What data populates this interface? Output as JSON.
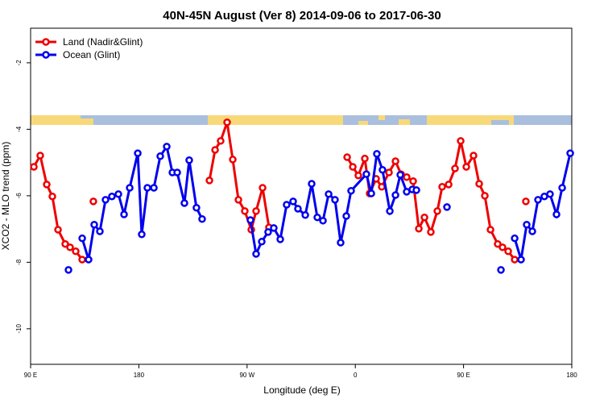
{
  "chart_data": {
    "type": "line",
    "title": "40N-45N August (Ver 8)   2014-09-06 to 2017-06-30",
    "x_label": "Longitude (deg E)",
    "y_label": "XCO2 - MLO trend (ppm)",
    "xlim": [
      90,
      540
    ],
    "ylim": [
      -11.07,
      -0.96
    ],
    "xticks": [
      {
        "value": 90,
        "label": "90 E"
      },
      180,
      {
        "value": 270,
        "label": "90 W"
      },
      {
        "value": 360,
        "label": "0"
      },
      {
        "value": 450,
        "label": "90 E"
      },
      {
        "value": 540,
        "label": "180"
      }
    ],
    "yticks": [
      -2,
      -4,
      -6,
      -8,
      -10
    ],
    "legend": "top-left",
    "series": [
      {
        "name": "Land (Nadir&Glint)",
        "color": "#ee0000",
        "x": [
          92.7,
          98.0,
          103.4,
          108.1,
          112.8,
          118.8,
          122.8,
          127.5,
          132.9,
          null,
          142.2,
          null,
          238.7,
          243.4,
          248.0,
          253.4,
          258.1,
          262.8,
          268.1,
          273.5,
          277.5,
          282.9,
          288.2,
          null,
          353.2,
          357.9,
          362.5,
          367.9,
          371.9,
          377.3,
          382.0,
          388.0,
          393.4,
          398.0,
          402.7,
          408.1,
          412.8,
          417.5,
          422.8,
          428.2,
          432.2,
          437.6,
          442.9,
          447.6,
          452.3,
          458.3,
          463.0,
          467.7,
          472.4,
          478.4,
          482.4,
          487.1,
          492.5,
          null,
          501.8
        ],
        "values": [
          -5.13,
          -4.79,
          -5.66,
          -6.02,
          -7.02,
          -7.45,
          -7.55,
          -7.67,
          -7.92,
          null,
          -6.17,
          null,
          -5.54,
          -4.62,
          -4.35,
          -3.79,
          -4.91,
          -6.12,
          -6.46,
          -7.02,
          -6.46,
          -5.76,
          -6.95,
          null,
          -4.84,
          -5.13,
          -5.39,
          -4.88,
          -5.93,
          -5.49,
          -5.73,
          -5.3,
          -4.96,
          -5.35,
          -5.44,
          -5.56,
          -6.99,
          -6.65,
          -7.09,
          -6.46,
          -5.73,
          -5.66,
          -5.18,
          -4.35,
          -5.13,
          -4.79,
          -5.64,
          -6.0,
          -7.02,
          -7.45,
          -7.55,
          -7.67,
          -7.92,
          null,
          -6.17
        ]
      },
      {
        "name": "Ocean (Glint)",
        "color": "#0000ee",
        "x": [
          121.5,
          null,
          132.9,
          138.2,
          142.9,
          147.6,
          152.3,
          157.6,
          163.0,
          167.7,
          172.4,
          179.1,
          182.4,
          187.1,
          192.5,
          197.8,
          203.2,
          207.9,
          211.9,
          217.9,
          221.9,
          227.9,
          232.6,
          null,
          272.8,
          277.5,
          282.2,
          287.5,
          292.2,
          297.6,
          302.9,
          308.3,
          312.3,
          318.4,
          323.7,
          328.4,
          333.1,
          337.8,
          343.1,
          347.8,
          352.5,
          356.5,
          369.2,
          373.3,
          377.9,
          382.6,
          388.7,
          393.4,
          397.4,
          402.7,
          407.4,
          410.8,
          null,
          436.2,
          null,
          481.1,
          null,
          492.5,
          497.8,
          502.5,
          507.2,
          511.9,
          517.2,
          521.9,
          527.3,
          532.0,
          538.7
        ],
        "values": [
          -8.23,
          null,
          -7.28,
          -7.92,
          -6.87,
          -7.07,
          -6.12,
          -6.02,
          -5.95,
          -6.56,
          -5.76,
          -4.72,
          -7.16,
          -5.76,
          -5.76,
          -4.81,
          -4.52,
          -5.3,
          -5.3,
          -6.22,
          -4.93,
          -6.36,
          -6.7,
          null,
          -6.73,
          -7.75,
          -7.38,
          -7.09,
          -6.97,
          -7.31,
          -6.27,
          -6.17,
          -6.39,
          -6.58,
          -5.64,
          -6.65,
          -6.75,
          -5.95,
          -6.12,
          -7.41,
          -6.61,
          -5.85,
          -5.35,
          -5.93,
          -4.74,
          -5.22,
          -6.46,
          -5.98,
          -5.37,
          -5.88,
          -5.81,
          -5.83,
          null,
          -6.34,
          null,
          -8.23,
          null,
          -7.28,
          -7.92,
          -6.87,
          -7.07,
          -6.12,
          -6.02,
          -5.95,
          -6.56,
          -5.76,
          -4.72
        ]
      }
    ]
  }
}
